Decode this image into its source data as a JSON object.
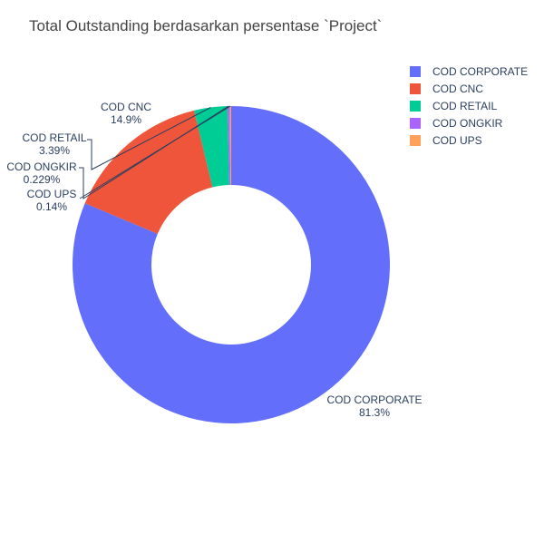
{
  "chart_data": {
    "type": "pie",
    "hole": true,
    "title": "Total Outstanding berdasarkan persentase `Project`",
    "labels": [
      "COD CORPORATE",
      "COD CNC",
      "COD RETAIL",
      "COD ONGKIR",
      "COD UPS"
    ],
    "percent_text": [
      "81.3%",
      "14.9%",
      "3.39%",
      "0.229%",
      "0.14%"
    ],
    "values": [
      81.3,
      14.9,
      3.39,
      0.229,
      0.14
    ],
    "colors": [
      "#636efa",
      "#ef553b",
      "#00cc96",
      "#ab63fa",
      "#ffa15a"
    ],
    "legend_position": "top-right"
  }
}
